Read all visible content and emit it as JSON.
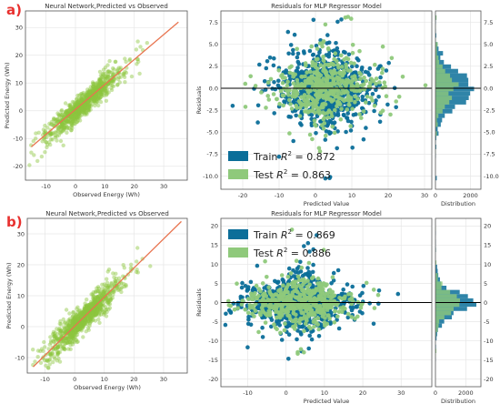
{
  "panel_labels": [
    "a)",
    "b)"
  ],
  "colors": {
    "scatter": "#8cc63f",
    "fit_line": "#e8744f",
    "train": "#0b6e99",
    "test": "#8fc97b",
    "zero_line": "#000000",
    "grid": "#e6e6e6",
    "frame": "#555555"
  },
  "chart_data": [
    {
      "id": "a-scatter",
      "type": "scatter",
      "title": "Neural Network,Predicted vs Observed",
      "xlabel": "Observed Energy (Wh)",
      "ylabel": "Predicted Energy (Wh)",
      "xlim": [
        -17,
        38
      ],
      "ylim": [
        -25,
        36
      ],
      "xticks": [
        -10,
        0,
        10,
        20,
        30
      ],
      "yticks": [
        -20,
        -10,
        0,
        10,
        20,
        30
      ],
      "fit_line": {
        "x": [
          -15,
          35
        ],
        "y": [
          -13,
          32
        ]
      },
      "grid": true
    },
    {
      "id": "a-residuals",
      "type": "scatter",
      "title": "Residuals for MLP Regressor Model",
      "xlabel": "Predicted Value",
      "ylabel": "Residuals",
      "xlim": [
        -26,
        32
      ],
      "ylim": [
        -11.5,
        8.8
      ],
      "xticks": [
        -20,
        -10,
        0,
        10,
        20,
        30
      ],
      "yticks": [
        -10.0,
        -7.5,
        -5.0,
        -2.5,
        0.0,
        2.5,
        5.0,
        7.5
      ],
      "legend": [
        {
          "name": "Train",
          "r2": "0.872"
        },
        {
          "name": "Test",
          "r2": "0.863"
        }
      ],
      "legend_position": "bottom-left",
      "grid": true,
      "distribution": {
        "xlabel": "Distribution",
        "xlim": [
          0,
          2600
        ],
        "xticks": [
          0,
          2000
        ]
      }
    },
    {
      "id": "b-scatter",
      "type": "scatter",
      "title": "Neural Network,Predicted vs Observed",
      "xlabel": "Observed Energy (Wh)",
      "ylabel": "Predicted Energy (Wh)",
      "xlim": [
        -16,
        38
      ],
      "ylim": [
        -15,
        35
      ],
      "xticks": [
        -10,
        0,
        10,
        20,
        30
      ],
      "yticks": [
        -10,
        0,
        10,
        20,
        30
      ],
      "fit_line": {
        "x": [
          -14,
          36
        ],
        "y": [
          -13,
          34
        ]
      },
      "grid": true
    },
    {
      "id": "b-residuals",
      "type": "scatter",
      "title": "Residuals for MLP Regressor Model",
      "xlabel": "Predicted Value",
      "ylabel": "Residuals",
      "xlim": [
        -17,
        38
      ],
      "ylim": [
        -22,
        22
      ],
      "xticks": [
        -10,
        0,
        10,
        20,
        30
      ],
      "yticks": [
        -20,
        -15,
        -10,
        -5,
        0,
        5,
        10,
        15,
        20
      ],
      "legend": [
        {
          "name": "Train",
          "r2": "0.869"
        },
        {
          "name": "Test",
          "r2": "0.886"
        }
      ],
      "legend_position": "top-left",
      "grid": true,
      "distribution": {
        "xlabel": "Distribution",
        "xlim": [
          0,
          3000
        ],
        "xticks": [
          0,
          2000
        ]
      }
    }
  ]
}
